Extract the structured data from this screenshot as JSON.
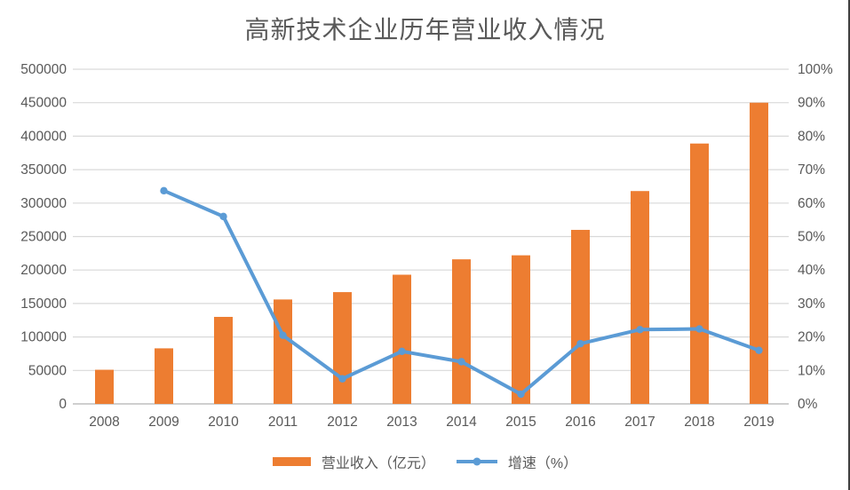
{
  "chart_data": {
    "type": "combo",
    "title": "高新技术企业历年营业收入情况",
    "categories": [
      "2008",
      "2009",
      "2010",
      "2011",
      "2012",
      "2013",
      "2014",
      "2015",
      "2016",
      "2017",
      "2018",
      "2019"
    ],
    "series": [
      {
        "name": "营业收入（亿元）",
        "type": "bar",
        "axis": "left",
        "values": [
          51000,
          83000,
          130000,
          156000,
          167000,
          193000,
          216000,
          222000,
          260000,
          318000,
          389000,
          450000
        ]
      },
      {
        "name": "增速（%）",
        "type": "line",
        "axis": "right",
        "values": [
          null,
          63.7,
          56.0,
          20.5,
          7.5,
          15.7,
          12.6,
          2.9,
          18.0,
          22.2,
          22.4,
          16.0
        ]
      }
    ],
    "left_axis": {
      "min": 0,
      "max": 500000,
      "step": 50000,
      "tick_labels": [
        "0",
        "50000",
        "100000",
        "150000",
        "200000",
        "250000",
        "300000",
        "350000",
        "400000",
        "450000",
        "500000"
      ]
    },
    "right_axis": {
      "min": 0,
      "max": 100,
      "step": 10,
      "tick_labels": [
        "0%",
        "10%",
        "20%",
        "30%",
        "40%",
        "50%",
        "60%",
        "70%",
        "80%",
        "90%",
        "100%"
      ]
    },
    "grid": true,
    "legend_position": "bottom"
  },
  "legend": {
    "bar_label": "营业收入（亿元）",
    "line_label": "增速（%）"
  },
  "colors": {
    "bar": "#ED7D31",
    "line": "#5B9BD5",
    "gridline": "#D9D9D9",
    "baseline": "#BFBFBF",
    "axis_text": "#595959",
    "title_text": "#595959",
    "right_border": "#3F3F3F"
  }
}
